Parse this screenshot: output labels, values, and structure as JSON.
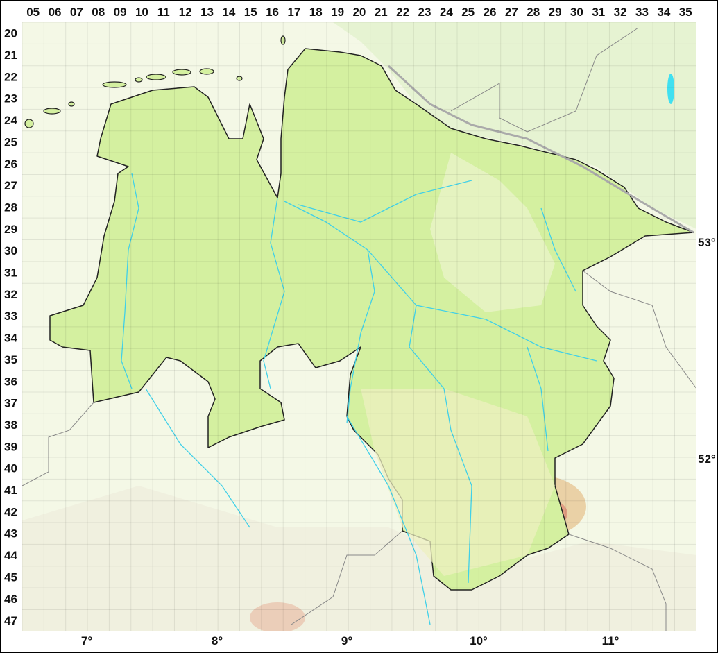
{
  "grid": {
    "columns": [
      "05",
      "06",
      "07",
      "08",
      "09",
      "10",
      "11",
      "12",
      "13",
      "14",
      "15",
      "16",
      "17",
      "18",
      "19",
      "20",
      "21",
      "22",
      "23",
      "24",
      "25",
      "26",
      "27",
      "28",
      "29",
      "30",
      "31",
      "32",
      "33",
      "34",
      "35"
    ],
    "rows": [
      "20",
      "21",
      "22",
      "23",
      "24",
      "25",
      "26",
      "27",
      "28",
      "29",
      "30",
      "31",
      "32",
      "33",
      "34",
      "35",
      "36",
      "37",
      "38",
      "39",
      "40",
      "41",
      "42",
      "43",
      "44",
      "45",
      "46",
      "47"
    ]
  },
  "longitude_labels": [
    "7°",
    "8°",
    "9°",
    "10°",
    "11°"
  ],
  "latitude_labels": [
    "53°",
    "52°"
  ],
  "colors": {
    "region_fill": "#d4f0a0",
    "region_border": "#222222",
    "river": "#40d0e8",
    "grid": "#e4e4e4",
    "background_lowland": "#f3f8e2",
    "upland": "#e9c9a0",
    "peak": "#e08a78",
    "neighbour_border": "#888888"
  }
}
